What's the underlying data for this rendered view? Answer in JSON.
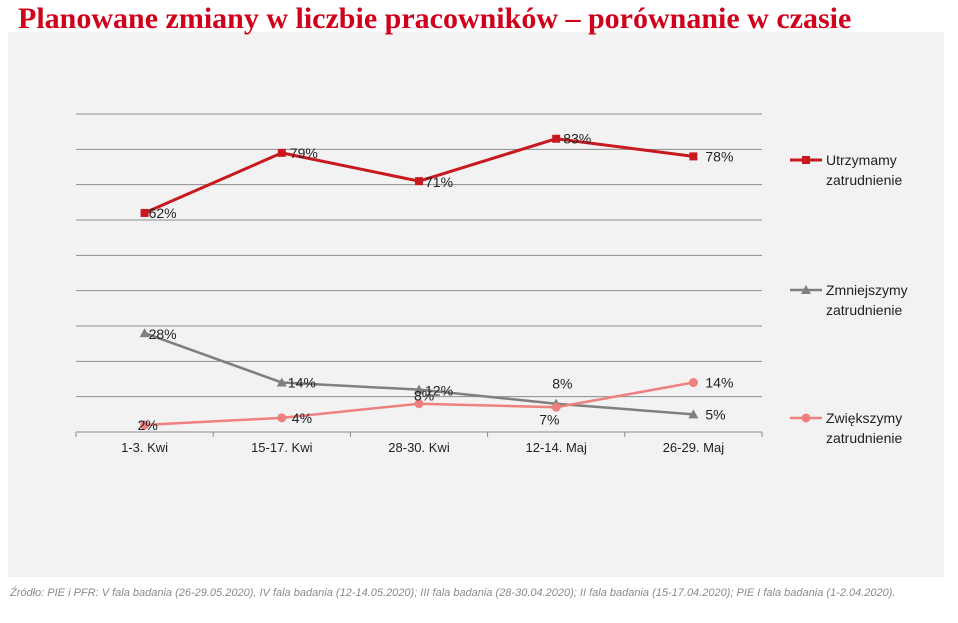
{
  "title": "Planowane zmiany w liczbie pracowników – porównanie w czasie",
  "source": "Źródło: PIE i PFR: V fala badania (26-29.05.2020), IV fala badania (12-14.05.2020); III fala badania (28-30.04.2020); II fala badania (15-17.04.2020); PIE I fala badania (1-2.04.2020).",
  "chart_data": {
    "type": "line",
    "categories": [
      "1-3. Kwi",
      "15-17. Kwi",
      "28-30. Kwi",
      "12-14. Maj",
      "26-29. Maj"
    ],
    "ylim": [
      0,
      90
    ],
    "grid": true,
    "legend_position": "right",
    "series": [
      {
        "name": "Utrzymamy zatrudnienie",
        "values": [
          62,
          79,
          71,
          83,
          78
        ],
        "labels": [
          "62%",
          "79%",
          "71%",
          "83%",
          "78%"
        ],
        "color": "#c8191e",
        "marker": "square"
      },
      {
        "name": "Zmniejszymy zatrudnienie",
        "values": [
          28,
          14,
          12,
          8,
          5
        ],
        "labels": [
          "28%",
          "14%",
          "12%",
          "8%",
          "5%"
        ],
        "color": "#7f7f7f",
        "marker": "triangle"
      },
      {
        "name": "Zwiększymy zatrudnienie",
        "values": [
          2,
          4,
          8,
          7,
          14
        ],
        "labels": [
          "2%",
          "4%",
          "8%",
          "7%",
          "14%"
        ],
        "color": "#ee8080",
        "marker": "circle"
      }
    ]
  }
}
